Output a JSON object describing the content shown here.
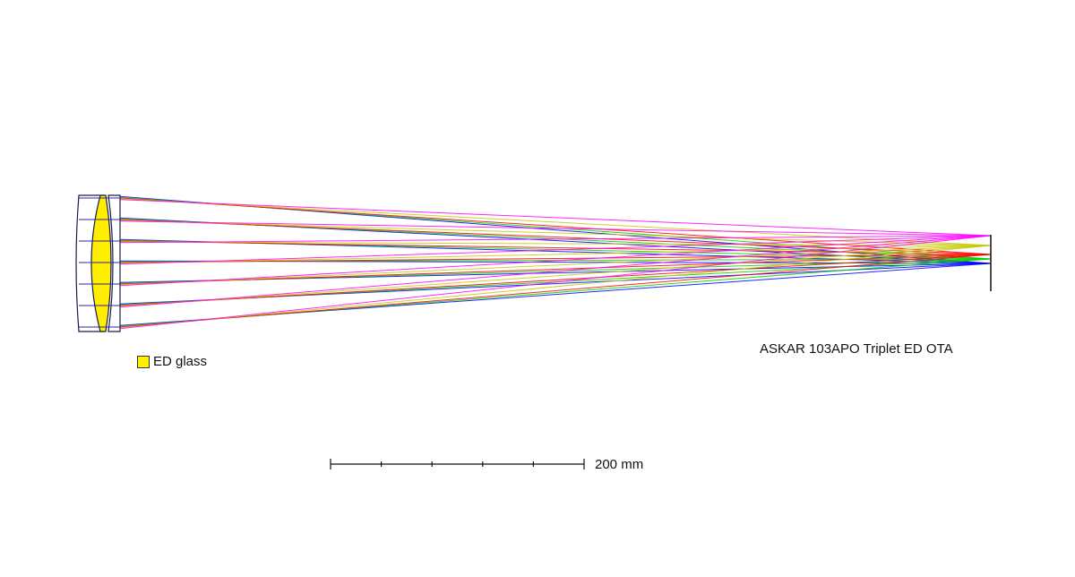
{
  "title": "ASKAR 103APO Triplet ED OTA",
  "legend": {
    "label": "ED glass",
    "color": "#ffee00"
  },
  "scale_bar": {
    "label": "200 mm",
    "divisions": 5
  },
  "colors": {
    "wavelength_rays": [
      "#0000ff",
      "#00d000",
      "#ff0000",
      "#c8c800",
      "#ff00ff"
    ],
    "lens_outline": "#1a1a4a",
    "ed_glass": "#ffee00"
  }
}
